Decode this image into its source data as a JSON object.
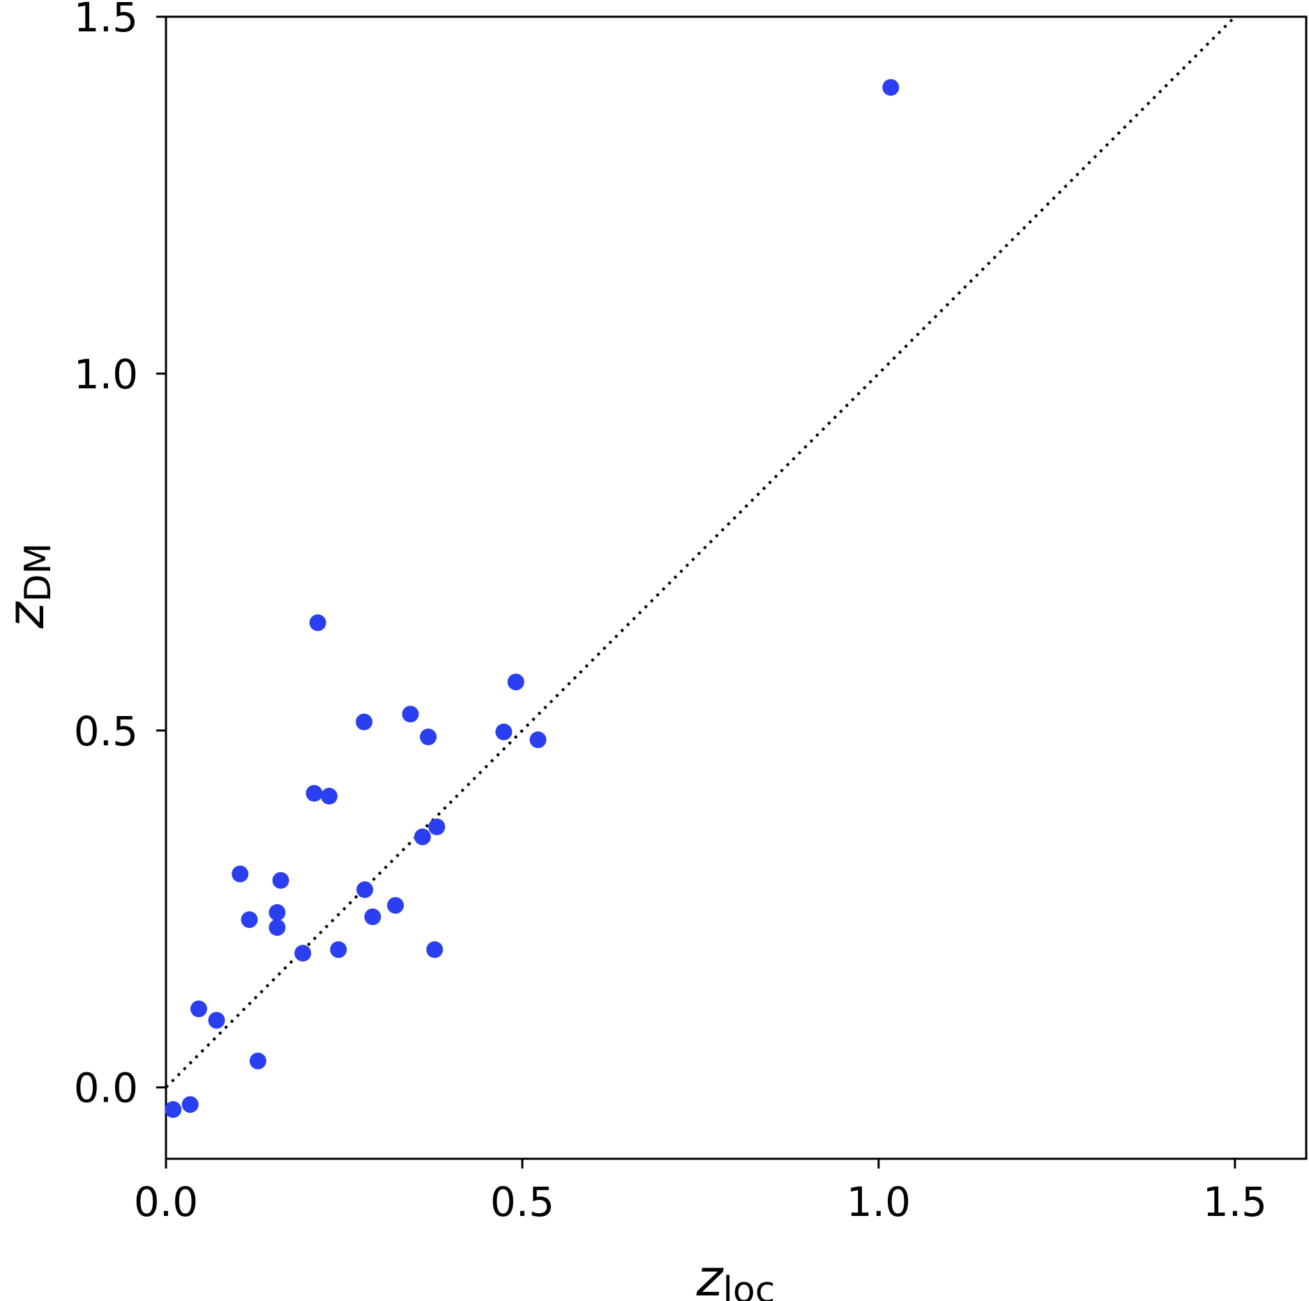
{
  "chart_data": {
    "type": "scatter",
    "xlabel": {
      "main": "z",
      "sub": "loc"
    },
    "ylabel": {
      "main": "z",
      "sub": "DM"
    },
    "xlim": [
      0.0,
      1.6
    ],
    "ylim": [
      -0.1,
      1.5
    ],
    "xticks": [
      0.0,
      0.5,
      1.0,
      1.5
    ],
    "xtick_labels": [
      "0.0",
      "0.5",
      "1.0",
      "1.5"
    ],
    "yticks": [
      0.0,
      0.5,
      1.0,
      1.5
    ],
    "ytick_labels": [
      "0.0",
      "0.5",
      "1.0",
      "1.5"
    ],
    "grid": false,
    "marker_color": "#2a3ff0",
    "reference_line": {
      "style": "dotted",
      "from": [
        0.0,
        0.0
      ],
      "to": [
        1.5,
        1.5
      ]
    },
    "series": [
      {
        "points": [
          [
            0.01,
            -0.031
          ],
          [
            0.034,
            -0.024
          ],
          [
            0.046,
            0.11
          ],
          [
            0.071,
            0.094
          ],
          [
            0.104,
            0.299
          ],
          [
            0.117,
            0.235
          ],
          [
            0.129,
            0.037
          ],
          [
            0.156,
            0.245
          ],
          [
            0.156,
            0.224
          ],
          [
            0.161,
            0.29
          ],
          [
            0.192,
            0.188
          ],
          [
            0.208,
            0.412
          ],
          [
            0.213,
            0.651
          ],
          [
            0.229,
            0.408
          ],
          [
            0.242,
            0.193
          ],
          [
            0.278,
            0.512
          ],
          [
            0.279,
            0.277
          ],
          [
            0.29,
            0.239
          ],
          [
            0.322,
            0.255
          ],
          [
            0.343,
            0.523
          ],
          [
            0.36,
            0.351
          ],
          [
            0.368,
            0.491
          ],
          [
            0.377,
            0.193
          ],
          [
            0.38,
            0.365
          ],
          [
            0.474,
            0.498
          ],
          [
            0.491,
            0.568
          ],
          [
            0.522,
            0.487
          ],
          [
            1.017,
            1.401
          ]
        ]
      }
    ]
  }
}
